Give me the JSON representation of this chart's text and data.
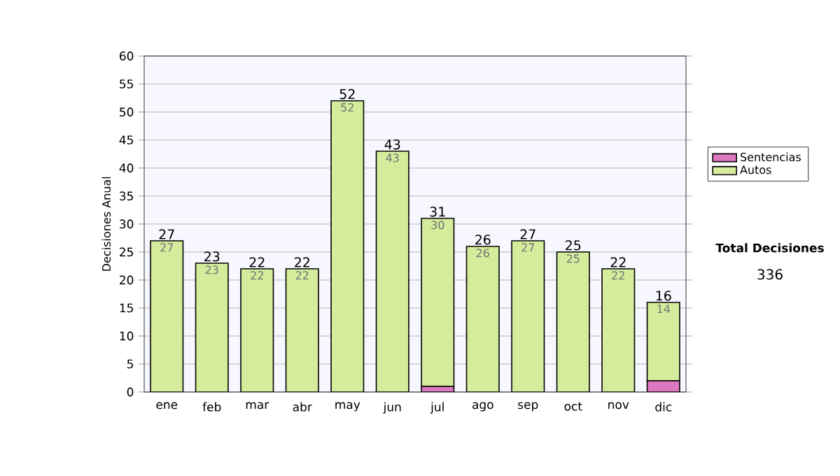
{
  "chart_data": {
    "type": "bar",
    "stacked": true,
    "ylabel": "Decisiones Anual",
    "categories": [
      "ene",
      "feb",
      "mar",
      "abr",
      "may",
      "jun",
      "jul",
      "ago",
      "sep",
      "oct",
      "nov",
      "dic"
    ],
    "series": [
      {
        "name": "Sentencias",
        "color": "#dd77c0",
        "values": [
          0,
          0,
          0,
          0,
          0,
          0,
          1,
          0,
          0,
          0,
          0,
          2
        ]
      },
      {
        "name": "Autos",
        "color": "#d4ec9c",
        "values": [
          27,
          23,
          22,
          22,
          52,
          43,
          30,
          26,
          27,
          25,
          22,
          14
        ],
        "value_labels": [
          "27",
          "23",
          "22",
          "22",
          "52",
          "43",
          "30",
          "26",
          "27",
          "25",
          "22",
          "14"
        ]
      }
    ],
    "totals": [
      "27",
      "23",
      "22",
      "22",
      "52",
      "43",
      "31",
      "26",
      "27",
      "25",
      "22",
      "16"
    ],
    "ylim": [
      0,
      60
    ],
    "yticks": [
      0,
      5,
      10,
      15,
      20,
      25,
      30,
      35,
      40,
      45,
      50,
      55,
      60
    ],
    "grid": "y",
    "legend": "right",
    "annotations": [
      "Total Decisiones",
      "336"
    ]
  }
}
